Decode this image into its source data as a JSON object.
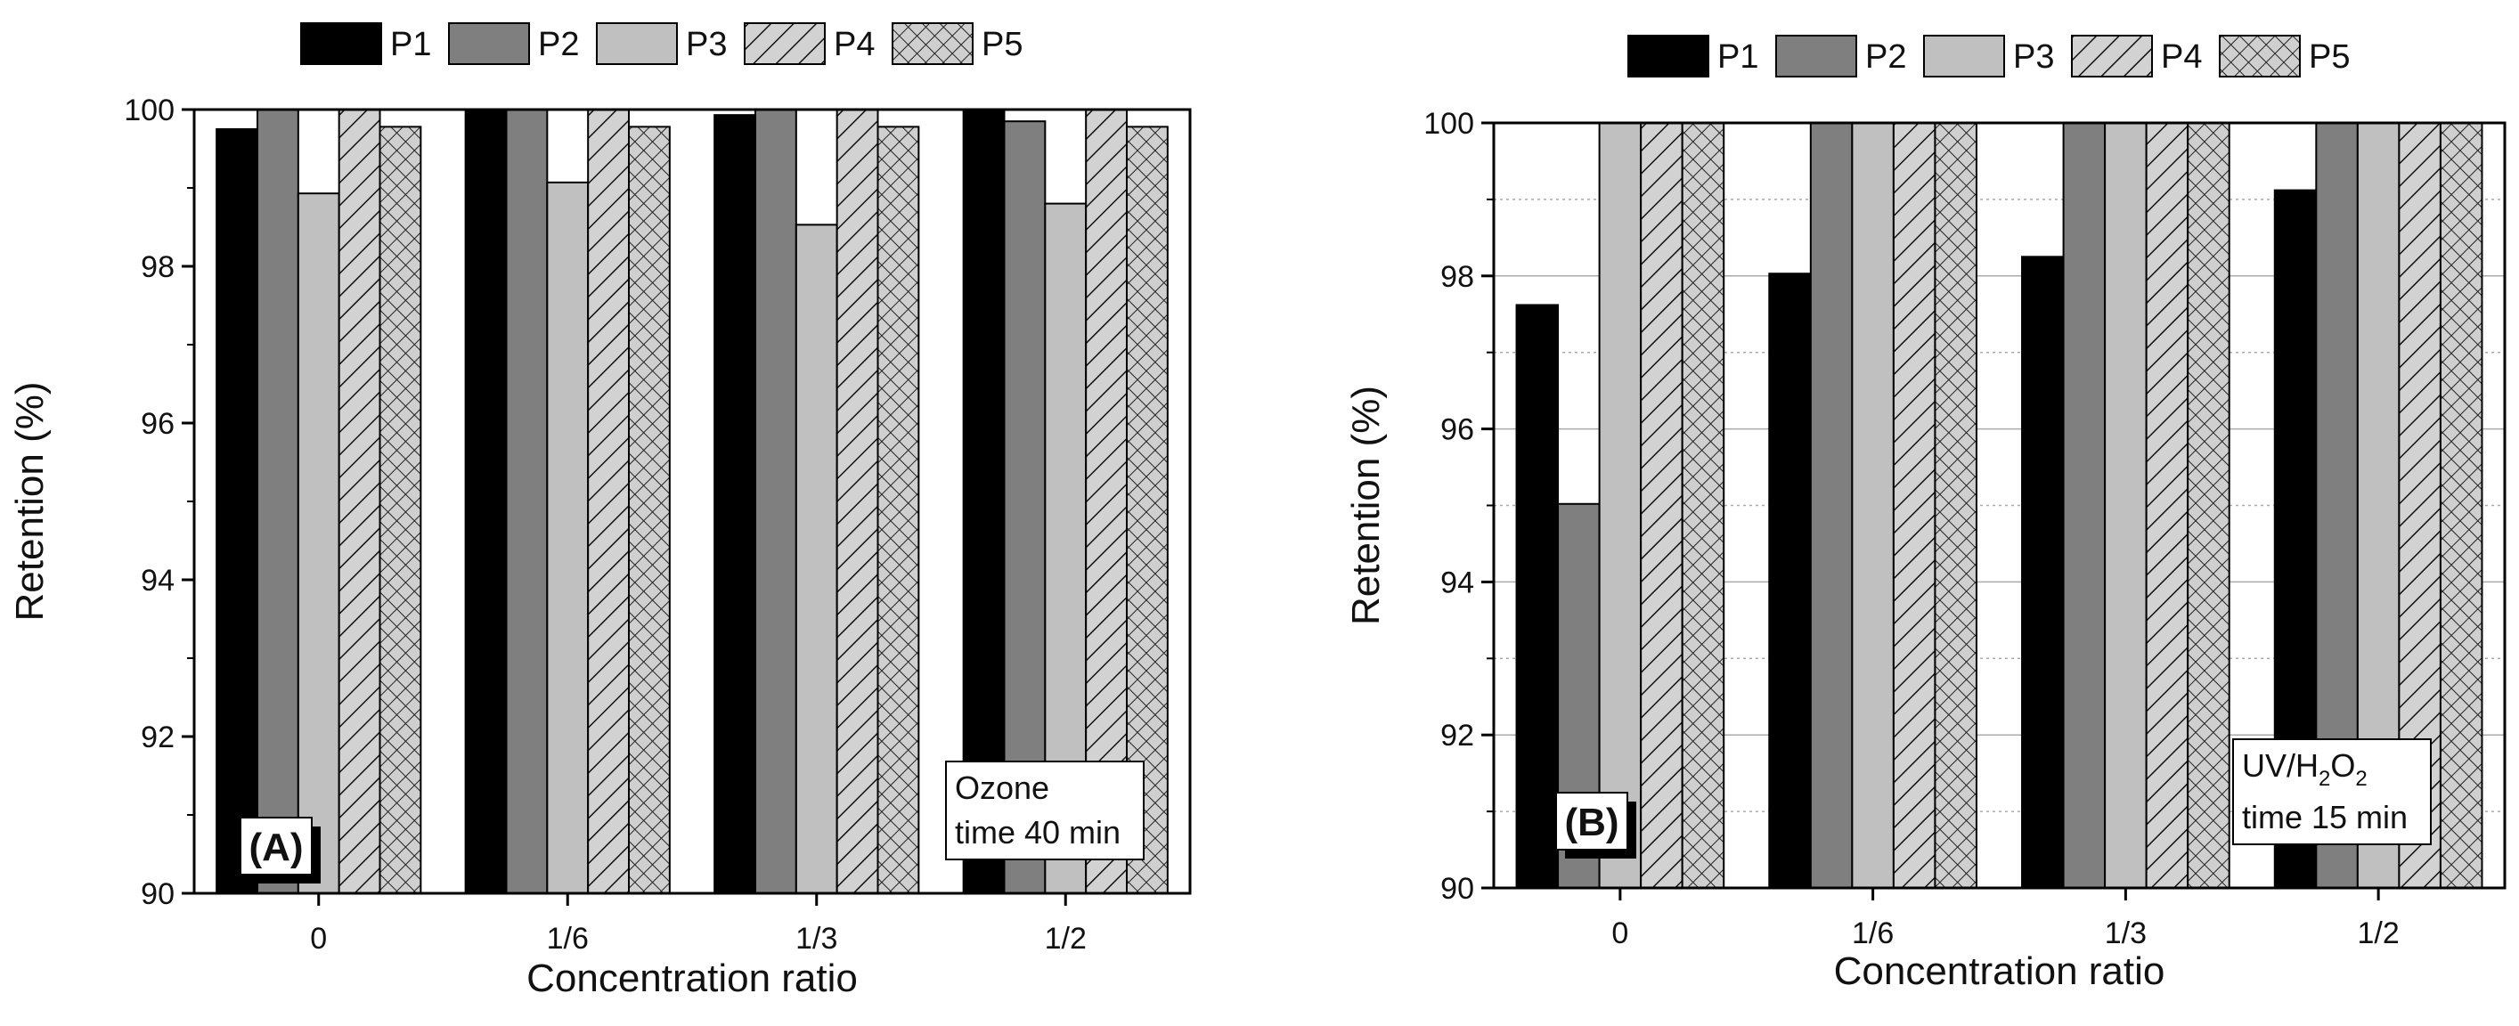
{
  "chart_data": [
    {
      "type": "bar",
      "panel_label": "(A)",
      "categories": [
        "0",
        "1/6",
        "1/3",
        "1/2"
      ],
      "series": [
        {
          "name": "P1",
          "values": [
            99.75,
            100,
            99.93,
            100
          ]
        },
        {
          "name": "P2",
          "values": [
            100,
            100,
            100,
            99.85
          ]
        },
        {
          "name": "P3",
          "values": [
            98.93,
            99.07,
            98.53,
            98.8
          ]
        },
        {
          "name": "P4",
          "values": [
            100,
            100,
            100,
            100
          ]
        },
        {
          "name": "P5",
          "values": [
            99.78,
            99.78,
            99.78,
            99.78
          ]
        }
      ],
      "xlabel": "Concentration ratio",
      "ylabel": "Retention (%)",
      "ylim": [
        90,
        100
      ],
      "yticks": [
        "90",
        "92",
        "94",
        "96",
        "98",
        "100"
      ],
      "grid": false,
      "legend_position": "top",
      "annotation": {
        "line1": "Ozone",
        "line2": "time 40 min"
      }
    },
    {
      "type": "bar",
      "panel_label": "(B)",
      "categories": [
        "0",
        "1/6",
        "1/3",
        "1/2"
      ],
      "series": [
        {
          "name": "P1",
          "values": [
            97.62,
            98.03,
            98.25,
            99.12
          ]
        },
        {
          "name": "P2",
          "values": [
            95.02,
            100,
            100,
            100
          ]
        },
        {
          "name": "P3",
          "values": [
            100,
            100,
            100,
            100
          ]
        },
        {
          "name": "P4",
          "values": [
            100,
            100,
            100,
            100
          ]
        },
        {
          "name": "P5",
          "values": [
            100,
            100,
            100,
            100
          ]
        }
      ],
      "xlabel": "Concentration ratio",
      "ylabel": "Retention (%)",
      "ylim": [
        90,
        100
      ],
      "yticks": [
        "90",
        "92",
        "94",
        "96",
        "98",
        "100"
      ],
      "grid": true,
      "legend_position": "top",
      "annotation": {
        "line1_pre": "UV/H",
        "line1_sub1": "2",
        "line1_mid": "O",
        "line1_sub2": "2",
        "line2": "time 15 min"
      }
    }
  ],
  "style": {
    "series_fills": [
      "#000000",
      "#7f7f7f",
      "#c0c0c0",
      "#d2d2d2",
      "#cfcfcf"
    ],
    "series_patterns": [
      "solid",
      "solid",
      "solid",
      "diagonal",
      "crosshatch"
    ]
  }
}
